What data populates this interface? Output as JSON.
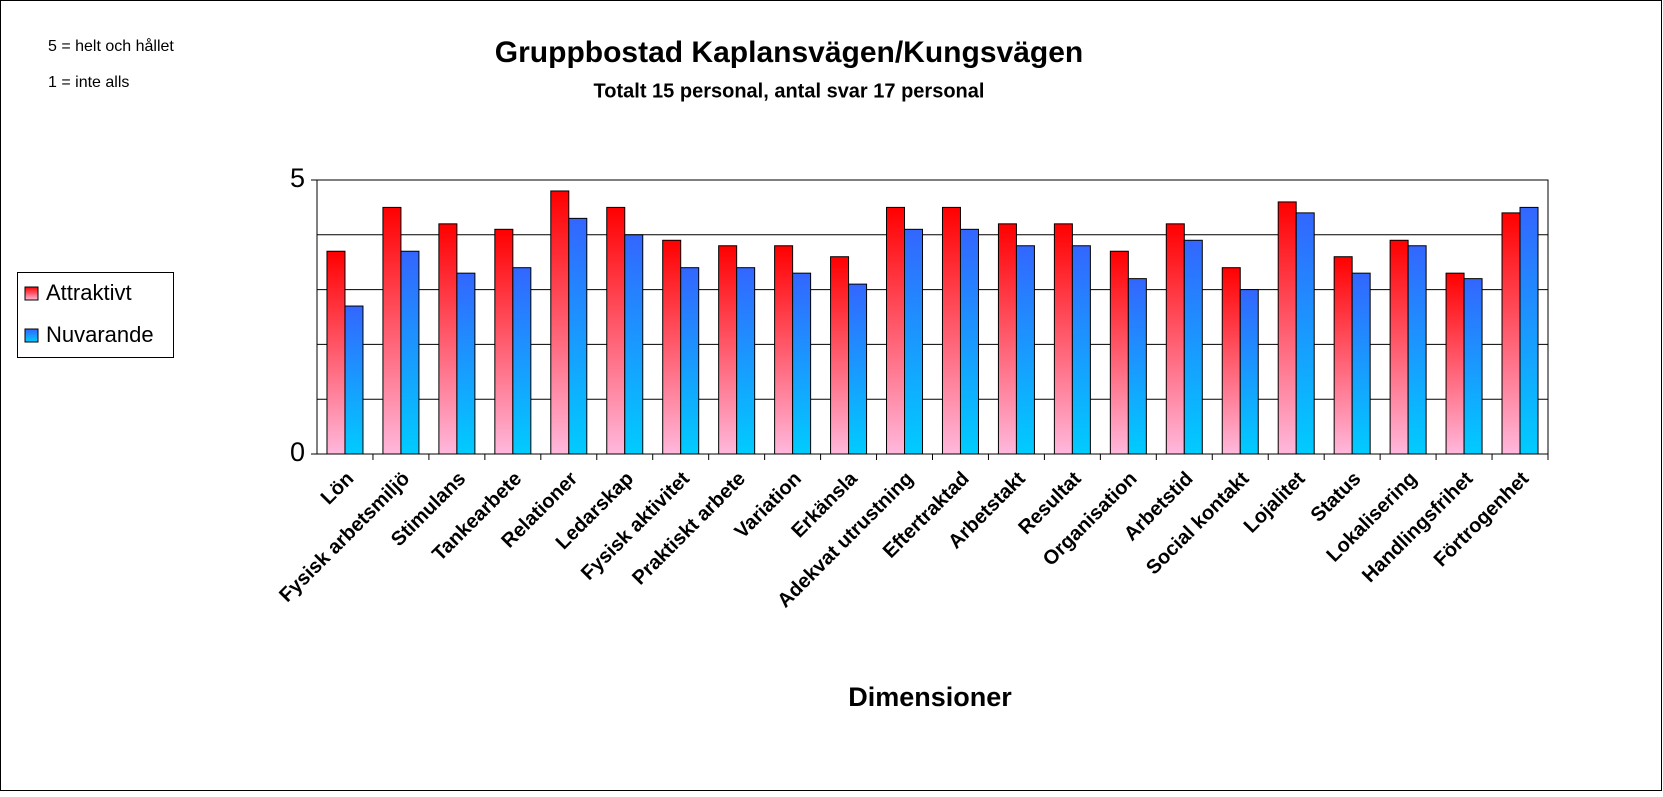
{
  "chart_data": {
    "type": "bar",
    "title": "Gruppbostad Kaplansvägen/Kungsvägen",
    "subtitle": "Totalt 15 personal, antal svar 17 personal",
    "notes": [
      "5 = helt och hållet",
      "1 = inte alls"
    ],
    "x_label": "Dimensioner",
    "categories": [
      "Lön",
      "Fysisk arbetsmiljö",
      "Stimulans",
      "Tankearbete",
      "Relationer",
      "Ledarskap",
      "Fysisk aktivitet",
      "Praktiskt arbete",
      "Variation",
      "Erkänsla",
      "Adekvat utrustning",
      "Eftertraktad",
      "Arbetstakt",
      "Resultat",
      "Organisation",
      "Arbetstid",
      "Social kontakt",
      "Lojalitet",
      "Status",
      "Lokalisering",
      "Handlingsfrihet",
      "Förtrogenhet"
    ],
    "series": [
      {
        "name": "Attraktivt",
        "color": "#ff0000",
        "values": [
          3.7,
          4.5,
          4.2,
          4.1,
          4.8,
          4.5,
          3.9,
          3.8,
          3.8,
          3.6,
          4.5,
          4.5,
          4.2,
          4.2,
          3.7,
          4.2,
          3.4,
          4.6,
          3.6,
          3.9,
          3.3,
          4.4
        ]
      },
      {
        "name": "Nuvarande",
        "color": "#3366ff",
        "values": [
          2.7,
          3.7,
          3.3,
          3.4,
          4.3,
          4.0,
          3.4,
          3.4,
          3.3,
          3.1,
          4.1,
          4.1,
          3.8,
          3.8,
          3.2,
          3.9,
          3.0,
          4.4,
          3.3,
          3.8,
          3.2,
          4.5
        ]
      }
    ],
    "ylim": [
      0,
      5
    ],
    "yticks": [
      0,
      5
    ],
    "ygrid": [
      1,
      2,
      3,
      4
    ],
    "grid": true,
    "legend": "left"
  }
}
